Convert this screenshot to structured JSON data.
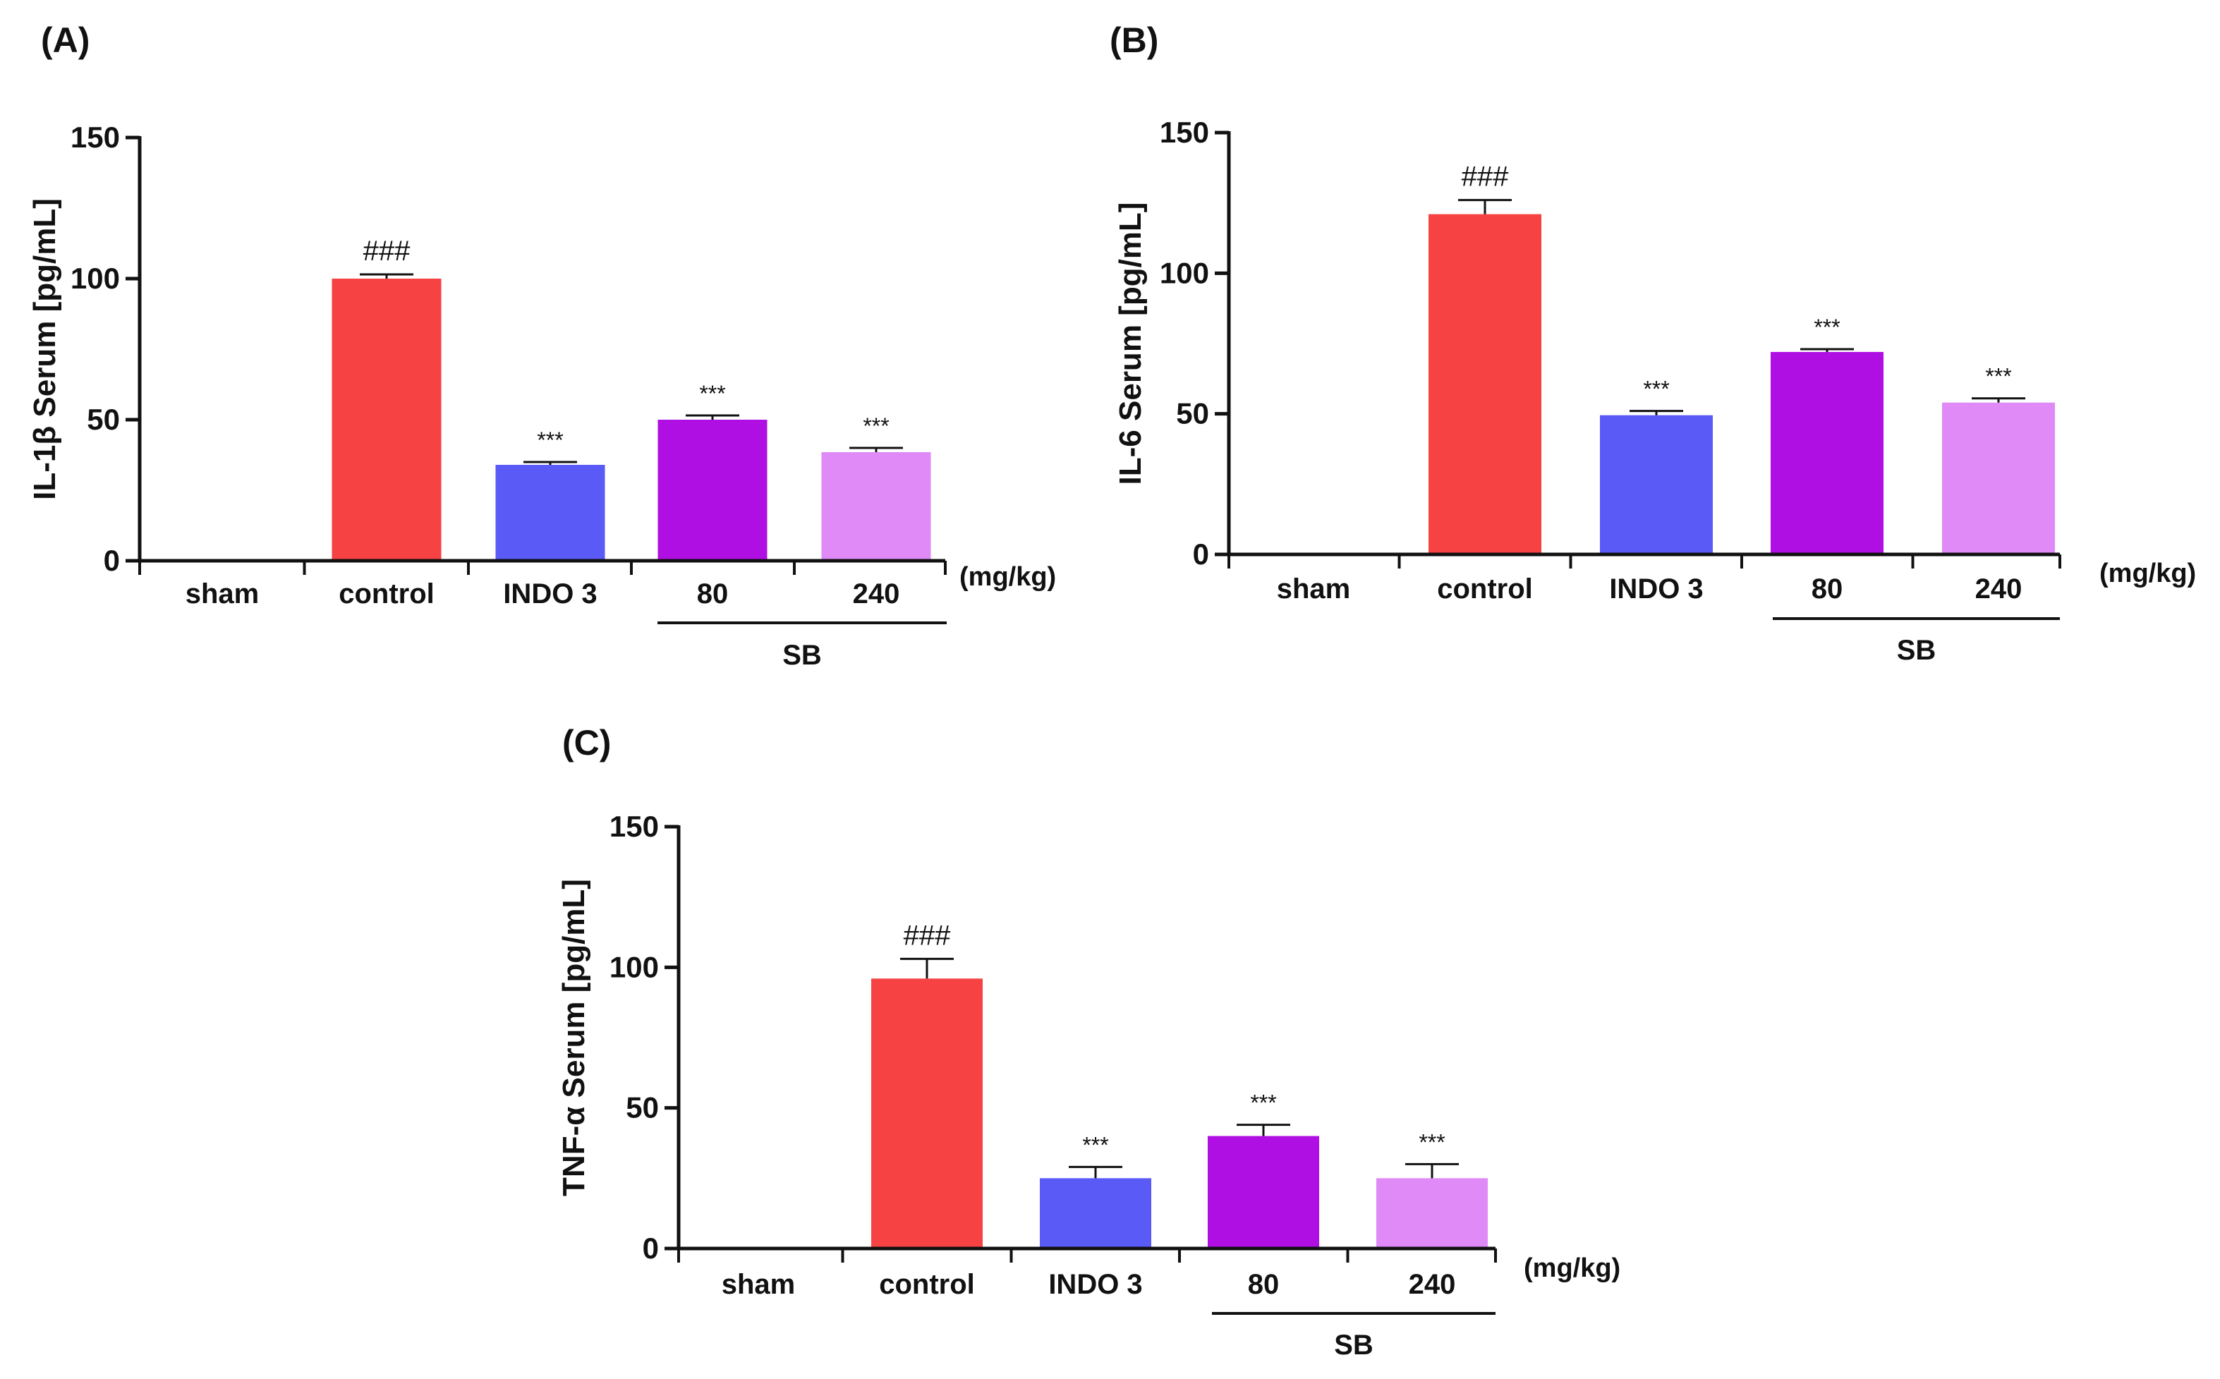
{
  "unit_label": "(mg/kg)",
  "group_label": "SB",
  "colors": {
    "sham": "#ffffff",
    "control": "#f74244",
    "indo": "#5a5af7",
    "sb80": "#b00fe3",
    "sb240": "#df8af6"
  },
  "chart_data": [
    {
      "panel": "(A)",
      "type": "bar",
      "ylabel": "IL-1β Serum [pg/mL]",
      "ylim": [
        0,
        150
      ],
      "yticks": [
        0,
        50,
        100,
        150
      ],
      "categories": [
        "sham",
        "control",
        "INDO 3",
        "80",
        "240"
      ],
      "values": [
        0,
        100,
        34,
        50,
        38.5
      ],
      "errors": [
        0,
        1.5,
        1,
        1.5,
        1.5
      ],
      "annotations": [
        "",
        "###",
        "***",
        "***",
        "***"
      ]
    },
    {
      "panel": "(B)",
      "type": "bar",
      "ylabel": "IL-6 Serum [pg/mL]",
      "ylim": [
        0,
        150
      ],
      "yticks": [
        0,
        50,
        100,
        150
      ],
      "categories": [
        "sham",
        "control",
        "INDO 3",
        "80",
        "240"
      ],
      "values": [
        0,
        121,
        49.5,
        72,
        54
      ],
      "errors": [
        0,
        5,
        1.5,
        1,
        1.5
      ],
      "annotations": [
        "",
        "###",
        "***",
        "***",
        "***"
      ]
    },
    {
      "panel": "(C)",
      "type": "bar",
      "ylabel": "TNF-α Serum [pg/mL]",
      "ylim": [
        0,
        150
      ],
      "yticks": [
        0,
        50,
        100,
        150
      ],
      "categories": [
        "sham",
        "control",
        "INDO 3",
        "80",
        "240"
      ],
      "values": [
        0,
        96,
        25,
        40,
        25
      ],
      "errors": [
        0,
        7,
        4,
        4,
        5
      ],
      "annotations": [
        "",
        "###",
        "***",
        "***",
        "***"
      ]
    }
  ]
}
